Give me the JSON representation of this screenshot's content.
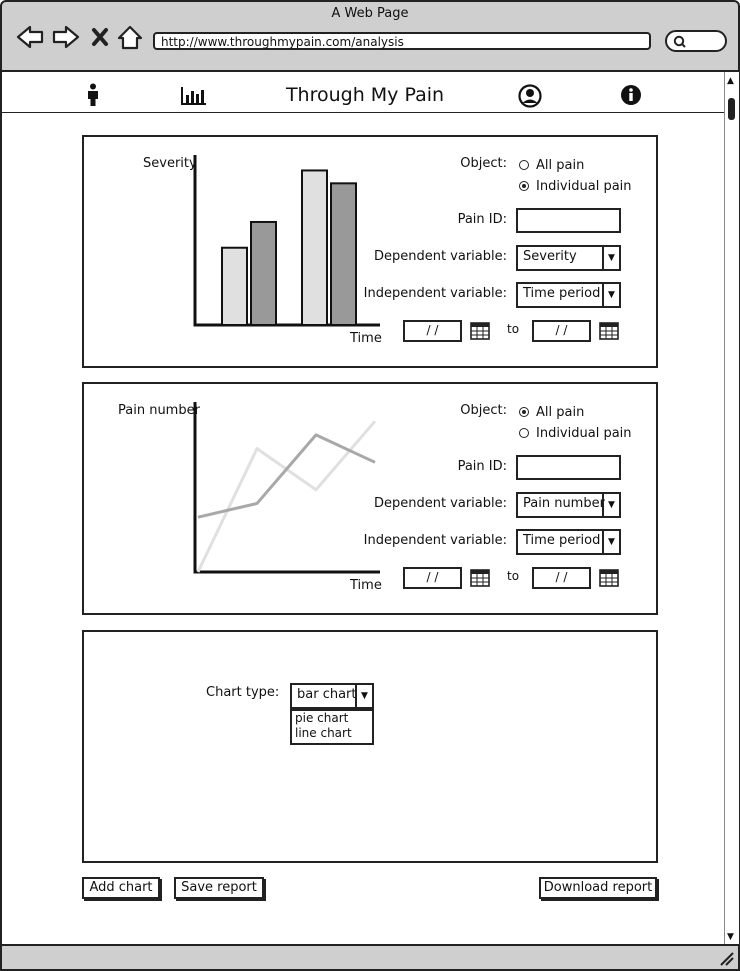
{
  "window": {
    "title": "A Web Page",
    "url": "http://www.throughmypain.com/analysis"
  },
  "browser": {
    "icons": [
      "back-arrow-icon",
      "forward-arrow-icon",
      "close-x-icon",
      "home-icon",
      "search-icon"
    ]
  },
  "header": {
    "title": "Through My Pain",
    "icons": [
      "person-icon",
      "bar-chart-icon",
      "user-account-icon",
      "info-icon"
    ]
  },
  "panel1": {
    "ylabel": "Severity",
    "xlabel": "Time",
    "object_label": "Object:",
    "options": [
      "All pain",
      "Individual pain"
    ],
    "selected": 1,
    "pain_id_label": "Pain ID:",
    "pain_id_value": "",
    "dep_label": "Dependent variable:",
    "dep_value": "Severity",
    "indep_label": "Independent variable:",
    "indep_value": "Time period",
    "date_from": "/ /",
    "to_label": "to",
    "date_to": "/ /"
  },
  "panel2": {
    "ylabel": "Pain number",
    "xlabel": "Time",
    "object_label": "Object:",
    "options": [
      "All pain",
      "Individual pain"
    ],
    "selected": 0,
    "pain_id_label": "Pain ID:",
    "pain_id_value": "",
    "dep_label": "Dependent variable:",
    "dep_value": "Pain number",
    "indep_label": "Independent variable:",
    "indep_value": "Time period",
    "date_from": "/ /",
    "to_label": "to",
    "date_to": "/ /"
  },
  "panel3": {
    "chart_type_label": "Chart type:",
    "chart_type_value": "bar chart",
    "options": [
      "pie chart",
      "line chart"
    ]
  },
  "buttons": {
    "add_chart": "Add chart",
    "save_report": "Save report",
    "download_report": "Download report"
  },
  "colors": {
    "chrome": "#cfcfcf",
    "bar_light": "#e0e0e0",
    "bar_dark": "#999999",
    "line_light": "#e0e0e0",
    "line_dark": "#a8a8a8"
  },
  "chart_data": [
    {
      "type": "bar",
      "xlabel": "Time",
      "ylabel": "Severity",
      "series": [
        {
          "values": [
            3,
            6
          ]
        },
        {
          "values": [
            4,
            5.5
          ]
        }
      ]
    },
    {
      "type": "line",
      "xlabel": "Time",
      "ylabel": "Pain number",
      "x": [
        0,
        1,
        2,
        3
      ],
      "series": [
        {
          "values": [
            0,
            4.5,
            3,
            5.5
          ]
        },
        {
          "values": [
            2,
            2.5,
            5,
            4
          ]
        }
      ]
    }
  ]
}
